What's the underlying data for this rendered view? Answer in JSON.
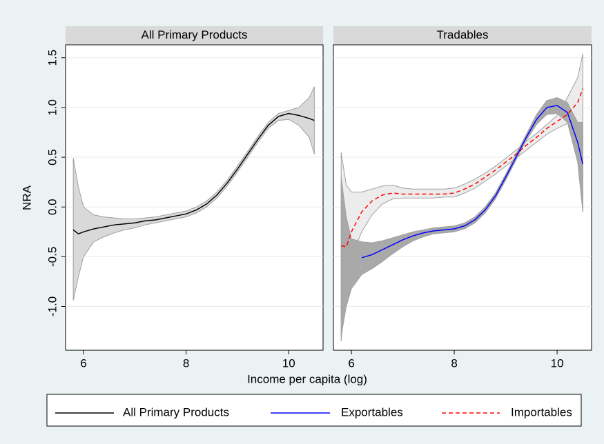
{
  "xlabel": "Income per capita (log)",
  "ylabel": "NRA",
  "legend_position": "bottom",
  "chart_data": [
    {
      "type": "line",
      "title": "All Primary Products",
      "x": [
        5.8,
        5.9,
        6.0,
        6.2,
        6.4,
        6.6,
        6.8,
        7.0,
        7.2,
        7.4,
        7.6,
        7.8,
        8.0,
        8.2,
        8.4,
        8.6,
        8.8,
        9.0,
        9.2,
        9.4,
        9.6,
        9.8,
        10.0,
        10.2,
        10.4,
        10.5
      ],
      "xlim": [
        5.65,
        10.67
      ],
      "xticks": [
        6,
        8,
        10
      ],
      "ylim": [
        -1.44,
        1.63
      ],
      "yticks": [
        {
          "value": -1.0,
          "label": "-1.0"
        },
        -0.5,
        {
          "value": 0.0,
          "label": "0.0"
        },
        0.5,
        {
          "value": 1.0,
          "label": "1.0"
        },
        1.5
      ],
      "grid": true,
      "series": [
        {
          "name": "All Primary Products",
          "color": "#000000",
          "dash": false,
          "band_color": "#d9d9d9",
          "values": [
            -0.23,
            -0.27,
            -0.25,
            -0.22,
            -0.2,
            -0.18,
            -0.17,
            -0.16,
            -0.14,
            -0.13,
            -0.11,
            -0.09,
            -0.07,
            -0.03,
            0.03,
            0.12,
            0.24,
            0.38,
            0.53,
            0.68,
            0.82,
            0.91,
            0.94,
            0.92,
            0.89,
            0.87
          ],
          "upper": [
            0.49,
            0.2,
            0.0,
            -0.08,
            -0.1,
            -0.11,
            -0.12,
            -0.12,
            -0.11,
            -0.1,
            -0.08,
            -0.06,
            -0.04,
            0.0,
            0.06,
            0.15,
            0.27,
            0.41,
            0.56,
            0.71,
            0.85,
            0.94,
            0.97,
            1.0,
            1.1,
            1.21
          ],
          "lower": [
            -0.94,
            -0.7,
            -0.5,
            -0.35,
            -0.3,
            -0.26,
            -0.23,
            -0.21,
            -0.18,
            -0.16,
            -0.14,
            -0.12,
            -0.1,
            -0.06,
            0.0,
            0.09,
            0.21,
            0.35,
            0.5,
            0.65,
            0.79,
            0.87,
            0.88,
            0.82,
            0.7,
            0.53
          ]
        }
      ]
    },
    {
      "type": "line",
      "title": "Tradables",
      "x": [
        5.8,
        5.9,
        6.0,
        6.2,
        6.4,
        6.6,
        6.8,
        7.0,
        7.2,
        7.4,
        7.6,
        7.8,
        8.0,
        8.2,
        8.4,
        8.6,
        8.8,
        9.0,
        9.2,
        9.4,
        9.6,
        9.8,
        10.0,
        10.2,
        10.4,
        10.5
      ],
      "xlim": [
        5.65,
        10.67
      ],
      "xticks": [
        6,
        8,
        10
      ],
      "ylim": [
        -1.44,
        1.63
      ],
      "yticks": [
        {
          "value": -1.0,
          "label": "-1.0"
        },
        -0.5,
        {
          "value": 0.0,
          "label": "0.0"
        },
        0.5,
        {
          "value": 1.0,
          "label": "1.0"
        },
        1.5
      ],
      "grid": true,
      "series": [
        {
          "name": "Importables",
          "color": "#ff0000",
          "dash": true,
          "band_color": "#ececec",
          "values": [
            -0.39,
            -0.4,
            -0.25,
            -0.05,
            0.06,
            0.12,
            0.14,
            0.13,
            0.13,
            0.13,
            0.13,
            0.13,
            0.14,
            0.18,
            0.23,
            0.3,
            0.37,
            0.45,
            0.53,
            0.62,
            0.7,
            0.79,
            0.86,
            0.93,
            1.05,
            1.19
          ],
          "upper": [
            0.55,
            0.22,
            0.15,
            0.15,
            0.18,
            0.21,
            0.22,
            0.19,
            0.18,
            0.18,
            0.18,
            0.18,
            0.19,
            0.23,
            0.28,
            0.34,
            0.41,
            0.49,
            0.57,
            0.66,
            0.74,
            0.83,
            0.92,
            1.1,
            1.3,
            1.54
          ],
          "lower": [
            -1.35,
            -0.8,
            -0.5,
            -0.25,
            -0.08,
            0.03,
            0.08,
            0.09,
            0.09,
            0.09,
            0.09,
            0.1,
            0.1,
            0.14,
            0.19,
            0.26,
            0.33,
            0.41,
            0.49,
            0.57,
            0.65,
            0.73,
            0.79,
            0.84,
            0.84,
            -0.05
          ]
        },
        {
          "name": "Exportables",
          "color": "#0000ff",
          "dash": false,
          "band_color": "#a9a9a9",
          "values": [
            null,
            null,
            null,
            -0.51,
            -0.48,
            -0.43,
            -0.38,
            -0.33,
            -0.29,
            -0.26,
            -0.24,
            -0.23,
            -0.22,
            -0.19,
            -0.13,
            -0.03,
            0.11,
            0.3,
            0.5,
            0.7,
            0.88,
            1.0,
            1.02,
            0.95,
            0.65,
            0.43
          ],
          "upper": [
            0.3,
            -0.1,
            -0.32,
            -0.35,
            -0.36,
            -0.34,
            -0.31,
            -0.28,
            -0.25,
            -0.23,
            -0.21,
            -0.2,
            -0.19,
            -0.16,
            -0.1,
            0.0,
            0.14,
            0.33,
            0.53,
            0.73,
            0.93,
            1.07,
            1.1,
            1.05,
            0.85,
            0.85
          ],
          "lower": [
            -1.3,
            -1.0,
            -0.82,
            -0.68,
            -0.62,
            -0.55,
            -0.47,
            -0.4,
            -0.34,
            -0.3,
            -0.27,
            -0.26,
            -0.25,
            -0.22,
            -0.16,
            -0.06,
            0.08,
            0.27,
            0.47,
            0.67,
            0.83,
            0.93,
            0.94,
            0.85,
            0.45,
            -0.05
          ]
        }
      ]
    }
  ]
}
